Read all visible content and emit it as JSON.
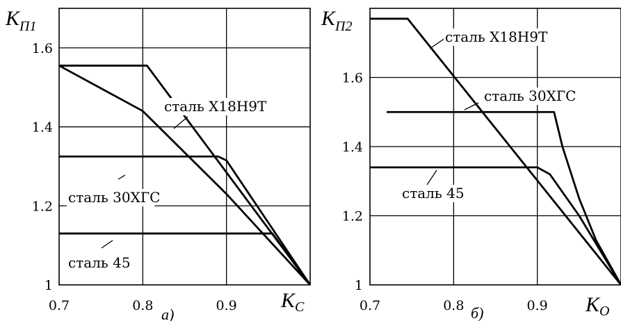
{
  "chart_data": [
    {
      "type": "line",
      "panel_label": "а)",
      "ylabel_main": "K",
      "ylabel_sub": "П1",
      "xlabel_main": "K",
      "xlabel_sub": "C",
      "xlim": [
        0.7,
        1.0
      ],
      "ylim": [
        1.0,
        1.7
      ],
      "xticks": [
        "0.7",
        "0.8",
        "0.9"
      ],
      "yticks": [
        "1",
        "1.2",
        "1.4",
        "1.6"
      ],
      "grid": true,
      "series": [
        {
          "name": "сталь Х18Н9Т",
          "x": [
            0.7,
            0.805,
            1.0
          ],
          "y": [
            1.555,
            1.555,
            1.0
          ]
        },
        {
          "name": "сталь 30ХГС",
          "x": [
            0.7,
            0.89,
            0.9,
            1.0
          ],
          "y": [
            1.325,
            1.325,
            1.315,
            1.0
          ]
        },
        {
          "name": "сталь 45",
          "x": [
            0.7,
            0.955,
            1.0
          ],
          "y": [
            1.13,
            1.13,
            1.0
          ]
        },
        {
          "name": "",
          "x": [
            0.7,
            0.8,
            0.9,
            1.0
          ],
          "y": [
            1.555,
            1.44,
            1.23,
            1.0
          ]
        }
      ]
    },
    {
      "type": "line",
      "panel_label": "б)",
      "ylabel_main": "K",
      "ylabel_sub": "П2",
      "xlabel_main": "K",
      "xlabel_sub": "O",
      "xlim": [
        0.7,
        1.0
      ],
      "ylim": [
        1.0,
        1.8
      ],
      "xticks": [
        "0.7",
        "0.8",
        "0.9"
      ],
      "yticks": [
        "1",
        "1.2",
        "1.4",
        "1.6"
      ],
      "grid": true,
      "series": [
        {
          "name": "сталь Х18Н9Т",
          "x": [
            0.7,
            0.745,
            1.0
          ],
          "y": [
            1.77,
            1.77,
            1.0
          ]
        },
        {
          "name": "сталь 30ХГС",
          "x": [
            0.72,
            0.92,
            0.93,
            0.95,
            0.97,
            1.0
          ],
          "y": [
            1.5,
            1.5,
            1.4,
            1.25,
            1.13,
            1.0
          ]
        },
        {
          "name": "сталь 45",
          "x": [
            0.7,
            0.9,
            0.915,
            0.95,
            1.0
          ],
          "y": [
            1.34,
            1.34,
            1.32,
            1.2,
            1.0
          ]
        }
      ]
    }
  ]
}
